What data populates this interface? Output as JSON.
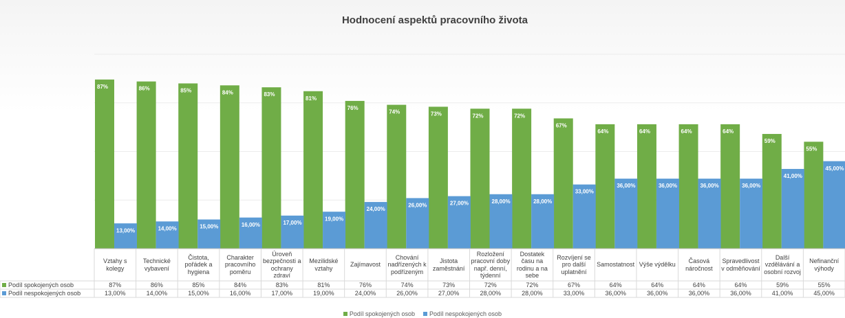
{
  "chart_data": {
    "type": "bar",
    "title": "Hodnocení aspektů pracovního života",
    "categories": [
      "Vztahy s kolegy",
      "Technické vybavení",
      "Čistota, pořádek a hygiena",
      "Charakter pracovního poměru",
      "Úroveň bezpečnosti a ochrany zdraví",
      "Mezilidské vztahy",
      "Zajímavost",
      "Chování nadřízených k podřízeným",
      "Jistota zaměstnání",
      "Rozložení pracovní doby např. denní, týdenní",
      "Dostatek času na rodinu a na sebe",
      "Rozvíjení se pro další uplatnění",
      "Samostatnost",
      "Výše výdělku",
      "Časová náročnost",
      "Spravedlivost v odměňování",
      "Další vzdělávání a osobní rozvoj",
      "Nefinanční výhody"
    ],
    "series": [
      {
        "name": "Podíl spokojených osob",
        "color": "#70ad47",
        "values": [
          87,
          86,
          85,
          84,
          83,
          81,
          76,
          74,
          73,
          72,
          72,
          67,
          64,
          64,
          64,
          64,
          59,
          55
        ],
        "value_labels": [
          "87%",
          "86%",
          "85%",
          "84%",
          "83%",
          "81%",
          "76%",
          "74%",
          "73%",
          "72%",
          "72%",
          "67%",
          "64%",
          "64%",
          "64%",
          "64%",
          "59%",
          "55%"
        ]
      },
      {
        "name": "Podíl nespokojených osob",
        "color": "#5b9bd5",
        "values": [
          13,
          14,
          15,
          16,
          17,
          19,
          24,
          26,
          27,
          28,
          28,
          33,
          36,
          36,
          36,
          36,
          41,
          45
        ],
        "value_labels": [
          "13,00%",
          "14,00%",
          "15,00%",
          "16,00%",
          "17,00%",
          "19,00%",
          "24,00%",
          "26,00%",
          "27,00%",
          "28,00%",
          "28,00%",
          "33,00%",
          "36,00%",
          "36,00%",
          "36,00%",
          "36,00%",
          "41,00%",
          "45,00%"
        ]
      }
    ],
    "ylim": [
      0,
      100
    ],
    "legend": "bottom"
  }
}
